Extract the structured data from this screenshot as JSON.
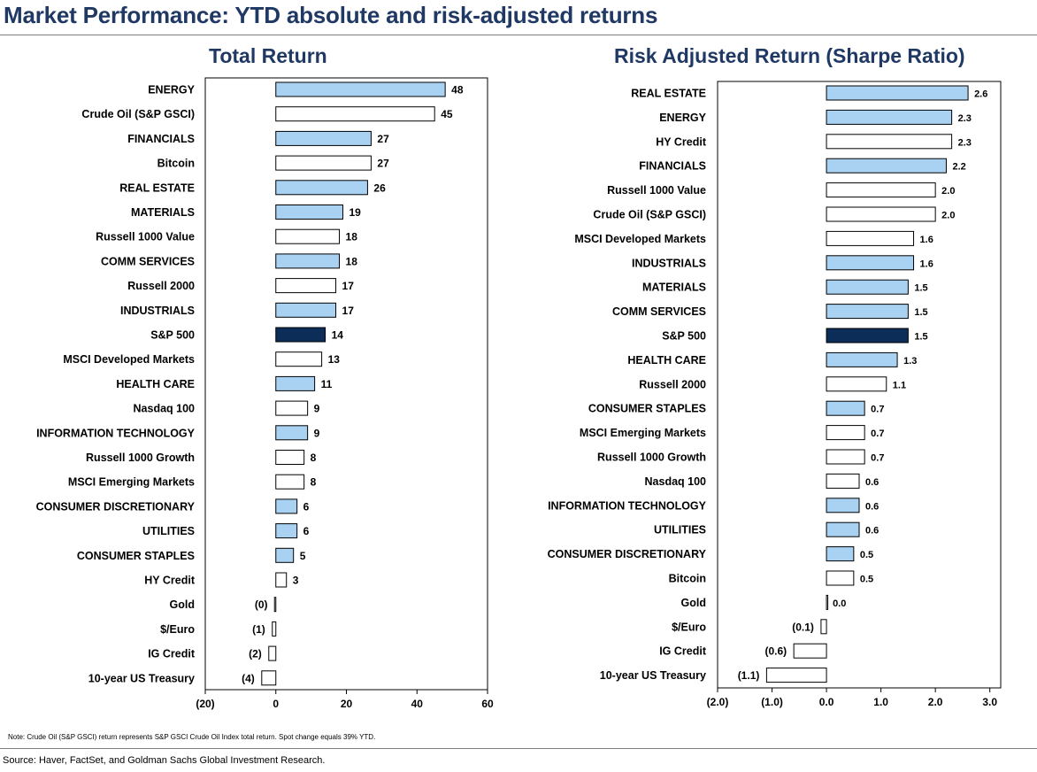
{
  "page_title": "Market Performance: YTD absolute and risk-adjusted returns",
  "note": "Note: Crude Oil (S&P GSCI) return represents S&P GSCI Crude Oil Index total return. Spot change equals 39% YTD.",
  "source": "Source: Haver, FactSet, and Goldman Sachs Global Investment Research.",
  "colors": {
    "title": "#1f3864",
    "sector_bar": "#a9d1f1",
    "other_bar": "#ffffff",
    "highlight_bar": "#0b2d57",
    "bar_stroke": "#000000"
  },
  "chart_data": [
    {
      "type": "bar",
      "orientation": "horizontal",
      "title": "Total Return",
      "xlim": [
        -20,
        60
      ],
      "xticks": [
        -20,
        0,
        20,
        40,
        60
      ],
      "tick_labels": [
        "(20)",
        "0",
        "20",
        "40",
        "60"
      ],
      "categories": [
        "ENERGY",
        "Crude Oil (S&P GSCI)",
        "FINANCIALS",
        "Bitcoin",
        "REAL ESTATE",
        "MATERIALS",
        "Russell 1000 Value",
        "COMM SERVICES",
        "Russell 2000",
        "INDUSTRIALS",
        "S&P 500",
        "MSCI Developed Markets",
        "HEALTH CARE",
        "Nasdaq 100",
        "INFORMATION TECHNOLOGY",
        "Russell 1000 Growth",
        "MSCI Emerging Markets",
        "CONSUMER DISCRETIONARY",
        "UTILITIES",
        "CONSUMER STAPLES",
        "HY Credit",
        "Gold",
        "$/Euro",
        "IG Credit",
        "10-year US Treasury"
      ],
      "values": [
        48,
        45,
        27,
        27,
        26,
        19,
        18,
        18,
        17,
        17,
        14,
        13,
        11,
        9,
        9,
        8,
        8,
        6,
        6,
        5,
        3,
        -0.3,
        -1,
        -2,
        -4
      ],
      "value_labels": [
        "48",
        "45",
        "27",
        "27",
        "26",
        "19",
        "18",
        "18",
        "17",
        "17",
        "14",
        "13",
        "11",
        "9",
        "9",
        "8",
        "8",
        "6",
        "6",
        "5",
        "3",
        "(0)",
        "(1)",
        "(2)",
        "(4)"
      ],
      "bar_styles": [
        "sector",
        "other",
        "sector",
        "other",
        "sector",
        "sector",
        "other",
        "sector",
        "other",
        "sector",
        "highlight",
        "other",
        "sector",
        "other",
        "sector",
        "other",
        "other",
        "sector",
        "sector",
        "sector",
        "other",
        "other",
        "other",
        "other",
        "other"
      ]
    },
    {
      "type": "bar",
      "orientation": "horizontal",
      "title": "Risk Adjusted Return (Sharpe Ratio)",
      "xlim": [
        -2.0,
        3.2
      ],
      "xticks": [
        -2.0,
        -1.0,
        0.0,
        1.0,
        2.0,
        3.0
      ],
      "tick_labels": [
        "(2.0)",
        "(1.0)",
        "0.0",
        "1.0",
        "2.0",
        "3.0"
      ],
      "categories": [
        "REAL ESTATE",
        "ENERGY",
        "HY Credit",
        "FINANCIALS",
        "Russell 1000 Value",
        "Crude Oil (S&P GSCI)",
        "MSCI Developed Markets",
        "INDUSTRIALS",
        "MATERIALS",
        "COMM SERVICES",
        "S&P 500",
        "HEALTH CARE",
        "Russell 2000",
        "CONSUMER STAPLES",
        "MSCI Emerging Markets",
        "Russell 1000 Growth",
        "Nasdaq 100",
        "INFORMATION TECHNOLOGY",
        "UTILITIES",
        "CONSUMER DISCRETIONARY",
        "Bitcoin",
        "Gold",
        "$/Euro",
        "IG Credit",
        "10-year US Treasury"
      ],
      "values": [
        2.6,
        2.3,
        2.3,
        2.2,
        2.0,
        2.0,
        1.6,
        1.6,
        1.5,
        1.5,
        1.5,
        1.3,
        1.1,
        0.7,
        0.7,
        0.7,
        0.6,
        0.6,
        0.6,
        0.5,
        0.5,
        0.0,
        -0.1,
        -0.6,
        -1.1
      ],
      "value_labels": [
        "2.6",
        "2.3",
        "2.3",
        "2.2",
        "2.0",
        "2.0",
        "1.6",
        "1.6",
        "1.5",
        "1.5",
        "1.5",
        "1.3",
        "1.1",
        "0.7",
        "0.7",
        "0.7",
        "0.6",
        "0.6",
        "0.6",
        "0.5",
        "0.5",
        "0.0",
        "(0.1)",
        "(0.6)",
        "(1.1)"
      ],
      "bar_styles": [
        "sector",
        "sector",
        "other",
        "sector",
        "other",
        "other",
        "other",
        "sector",
        "sector",
        "sector",
        "highlight",
        "sector",
        "other",
        "sector",
        "other",
        "other",
        "other",
        "sector",
        "sector",
        "sector",
        "other",
        "other",
        "other",
        "other",
        "other"
      ]
    }
  ]
}
